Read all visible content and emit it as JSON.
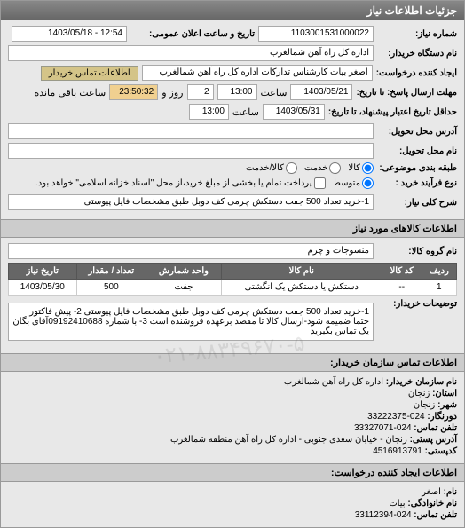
{
  "header": {
    "title": "جزئیات اطلاعات نیاز"
  },
  "fields": {
    "request_no_label": "شماره نیاز:",
    "request_no": "1103001531000022",
    "pub_date_label": "تاریخ و ساعت اعلان عمومی:",
    "pub_date": "12:54 - 1403/05/18",
    "buyer_label": "نام دستگاه خریدار:",
    "buyer": "اداره کل راه آهن شمالغرب",
    "creator_label": "ایجاد کننده درخواست:",
    "creator": "اصغر بیات کارشناس تدارکات اداره کل راه آهن شمالغرب",
    "contact_btn": "اطلاعات تماس خریدار",
    "deadline_label": "مهلت ارسال پاسخ: تا تاریخ:",
    "deadline_date": "1403/05/21",
    "deadline_time_label": "ساعت",
    "deadline_time": "13:00",
    "days_label": "روز و",
    "days": "2",
    "remain_label": "ساعت باقی مانده",
    "remain_time": "23:50:32",
    "valid_label": "حداقل تاریخ اعتبار پیشنهاد، تا تاریخ:",
    "valid_date": "1403/05/31",
    "valid_time": "13:00",
    "delivery_addr_label": "آدرس محل تحویل:",
    "delivery_name_label": "نام محل تحویل:",
    "pkg_label": "طبقه بندی موضوعی:",
    "pkg_opts": {
      "kala": "کالا",
      "khadamat": "خدمت",
      "both": "کالا/خدمت"
    },
    "pay_label": "نوع فرآیند خرید :",
    "pay_opts": {
      "mid": "متوسط",
      "note": "پرداخت تمام یا بخشی از مبلغ خرید،از محل \"اسناد خزانه اسلامی\" خواهد بود."
    },
    "desc_label": "شرح کلی نیاز:",
    "desc": "1-خرید تعداد 500 جفت دستکش چرمی کف دوبل طبق مشخصات فایل پیوستی"
  },
  "items_header": "اطلاعات کالاهای مورد نیاز",
  "cat_label": "نام گروه کالا:",
  "cat": "منسوجات و چرم",
  "table": {
    "cols": [
      "ردیف",
      "کد کالا",
      "نام کالا",
      "واحد شمارش",
      "تعداد / مقدار",
      "تاریخ نیاز"
    ],
    "rows": [
      [
        "1",
        "--",
        "دستکش یا دستکش یک انگشتی",
        "جفت",
        "500",
        "1403/05/30"
      ]
    ]
  },
  "notes_label": "توضیحات خریدار:",
  "notes": "1-خرید تعداد 500 جفت دستکش چرمی کف دوبل طبق مشخصات فایل پیوستی 2- پیش فاکتور حتما ضمیمه شود-ارسال کالا تا مقصد برعهده فروشنده است 3- با شماره 09192410688آقای بگان یک تماس بگیرید",
  "contact_header": "اطلاعات تماس سازمان خریدار:",
  "contact": {
    "org_label": "نام سازمان خریدار:",
    "org": "اداره کل راه آهن شمالغرب",
    "prov_label": "استان:",
    "prov": "زنجان",
    "city_label": "شهر:",
    "city": "زنجان",
    "fax_label": "دورنگار:",
    "fax": "024-33222375",
    "tel_label": "تلفن تماس:",
    "tel": "024-33327071",
    "addr_label": "آدرس پستی:",
    "addr": "زنجان - خیابان سعدی جنوبی - اداره کل راه آهن منطقه شمالغرب",
    "post_label": "کدپستی:",
    "post": "4516913791"
  },
  "creator_header": "اطلاعات ایجاد کننده درخواست:",
  "creator_info": {
    "name_label": "نام:",
    "name": "اصغر",
    "lname_label": "نام خانوادگی:",
    "lname": "بیات",
    "tel_label": "تلفن تماس:",
    "tel": "024-33112394"
  },
  "watermark": "۰۲۱-۸۸۳۴۹۶۷۰-۵"
}
